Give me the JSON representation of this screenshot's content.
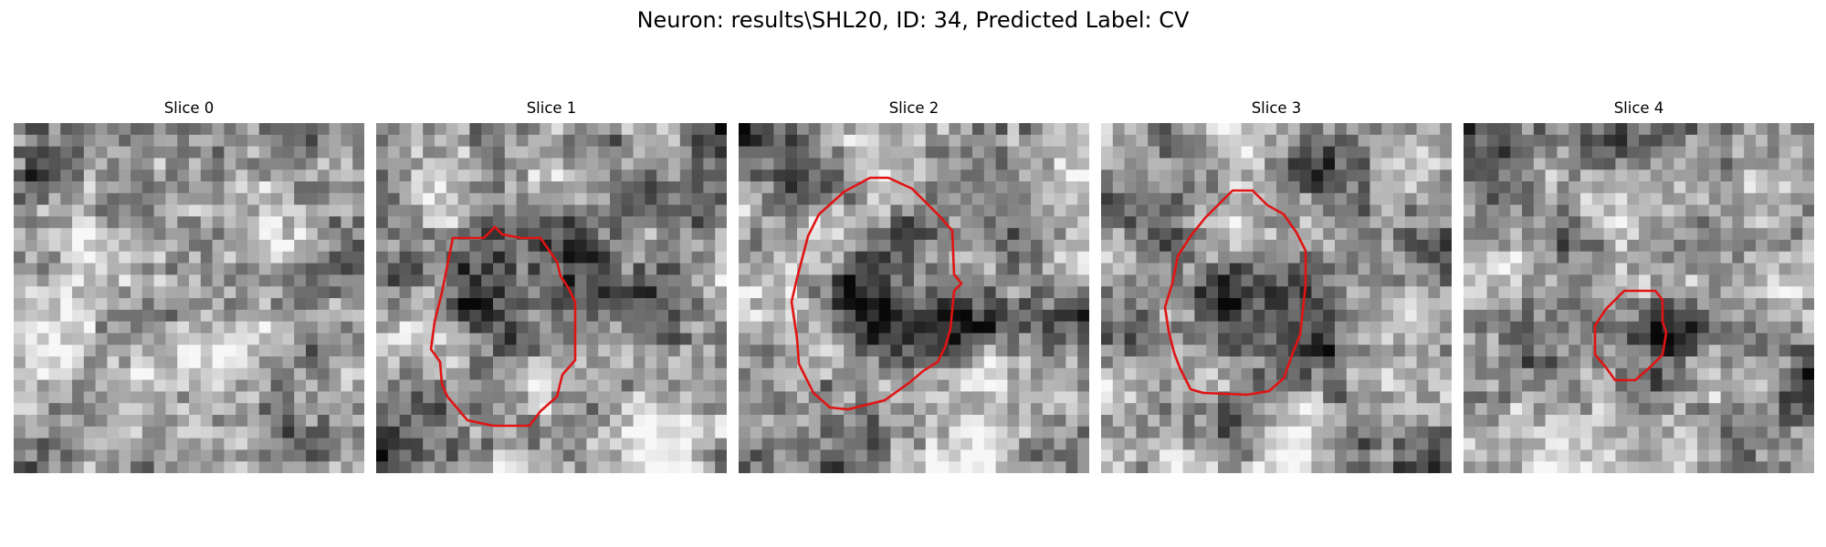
{
  "figure": {
    "title": "Neuron: results\\SHL20, ID: 34, Predicted Label: CV",
    "contour_color": "#e01414",
    "slices": [
      {
        "label": "Slice 0",
        "has_contour": false,
        "seed": 11
      },
      {
        "label": "Slice 1",
        "has_contour": true,
        "seed": 23
      },
      {
        "label": "Slice 2",
        "has_contour": true,
        "seed": 37
      },
      {
        "label": "Slice 3",
        "has_contour": true,
        "seed": 41
      },
      {
        "label": "Slice 4",
        "has_contour": true,
        "seed": 53
      }
    ]
  }
}
